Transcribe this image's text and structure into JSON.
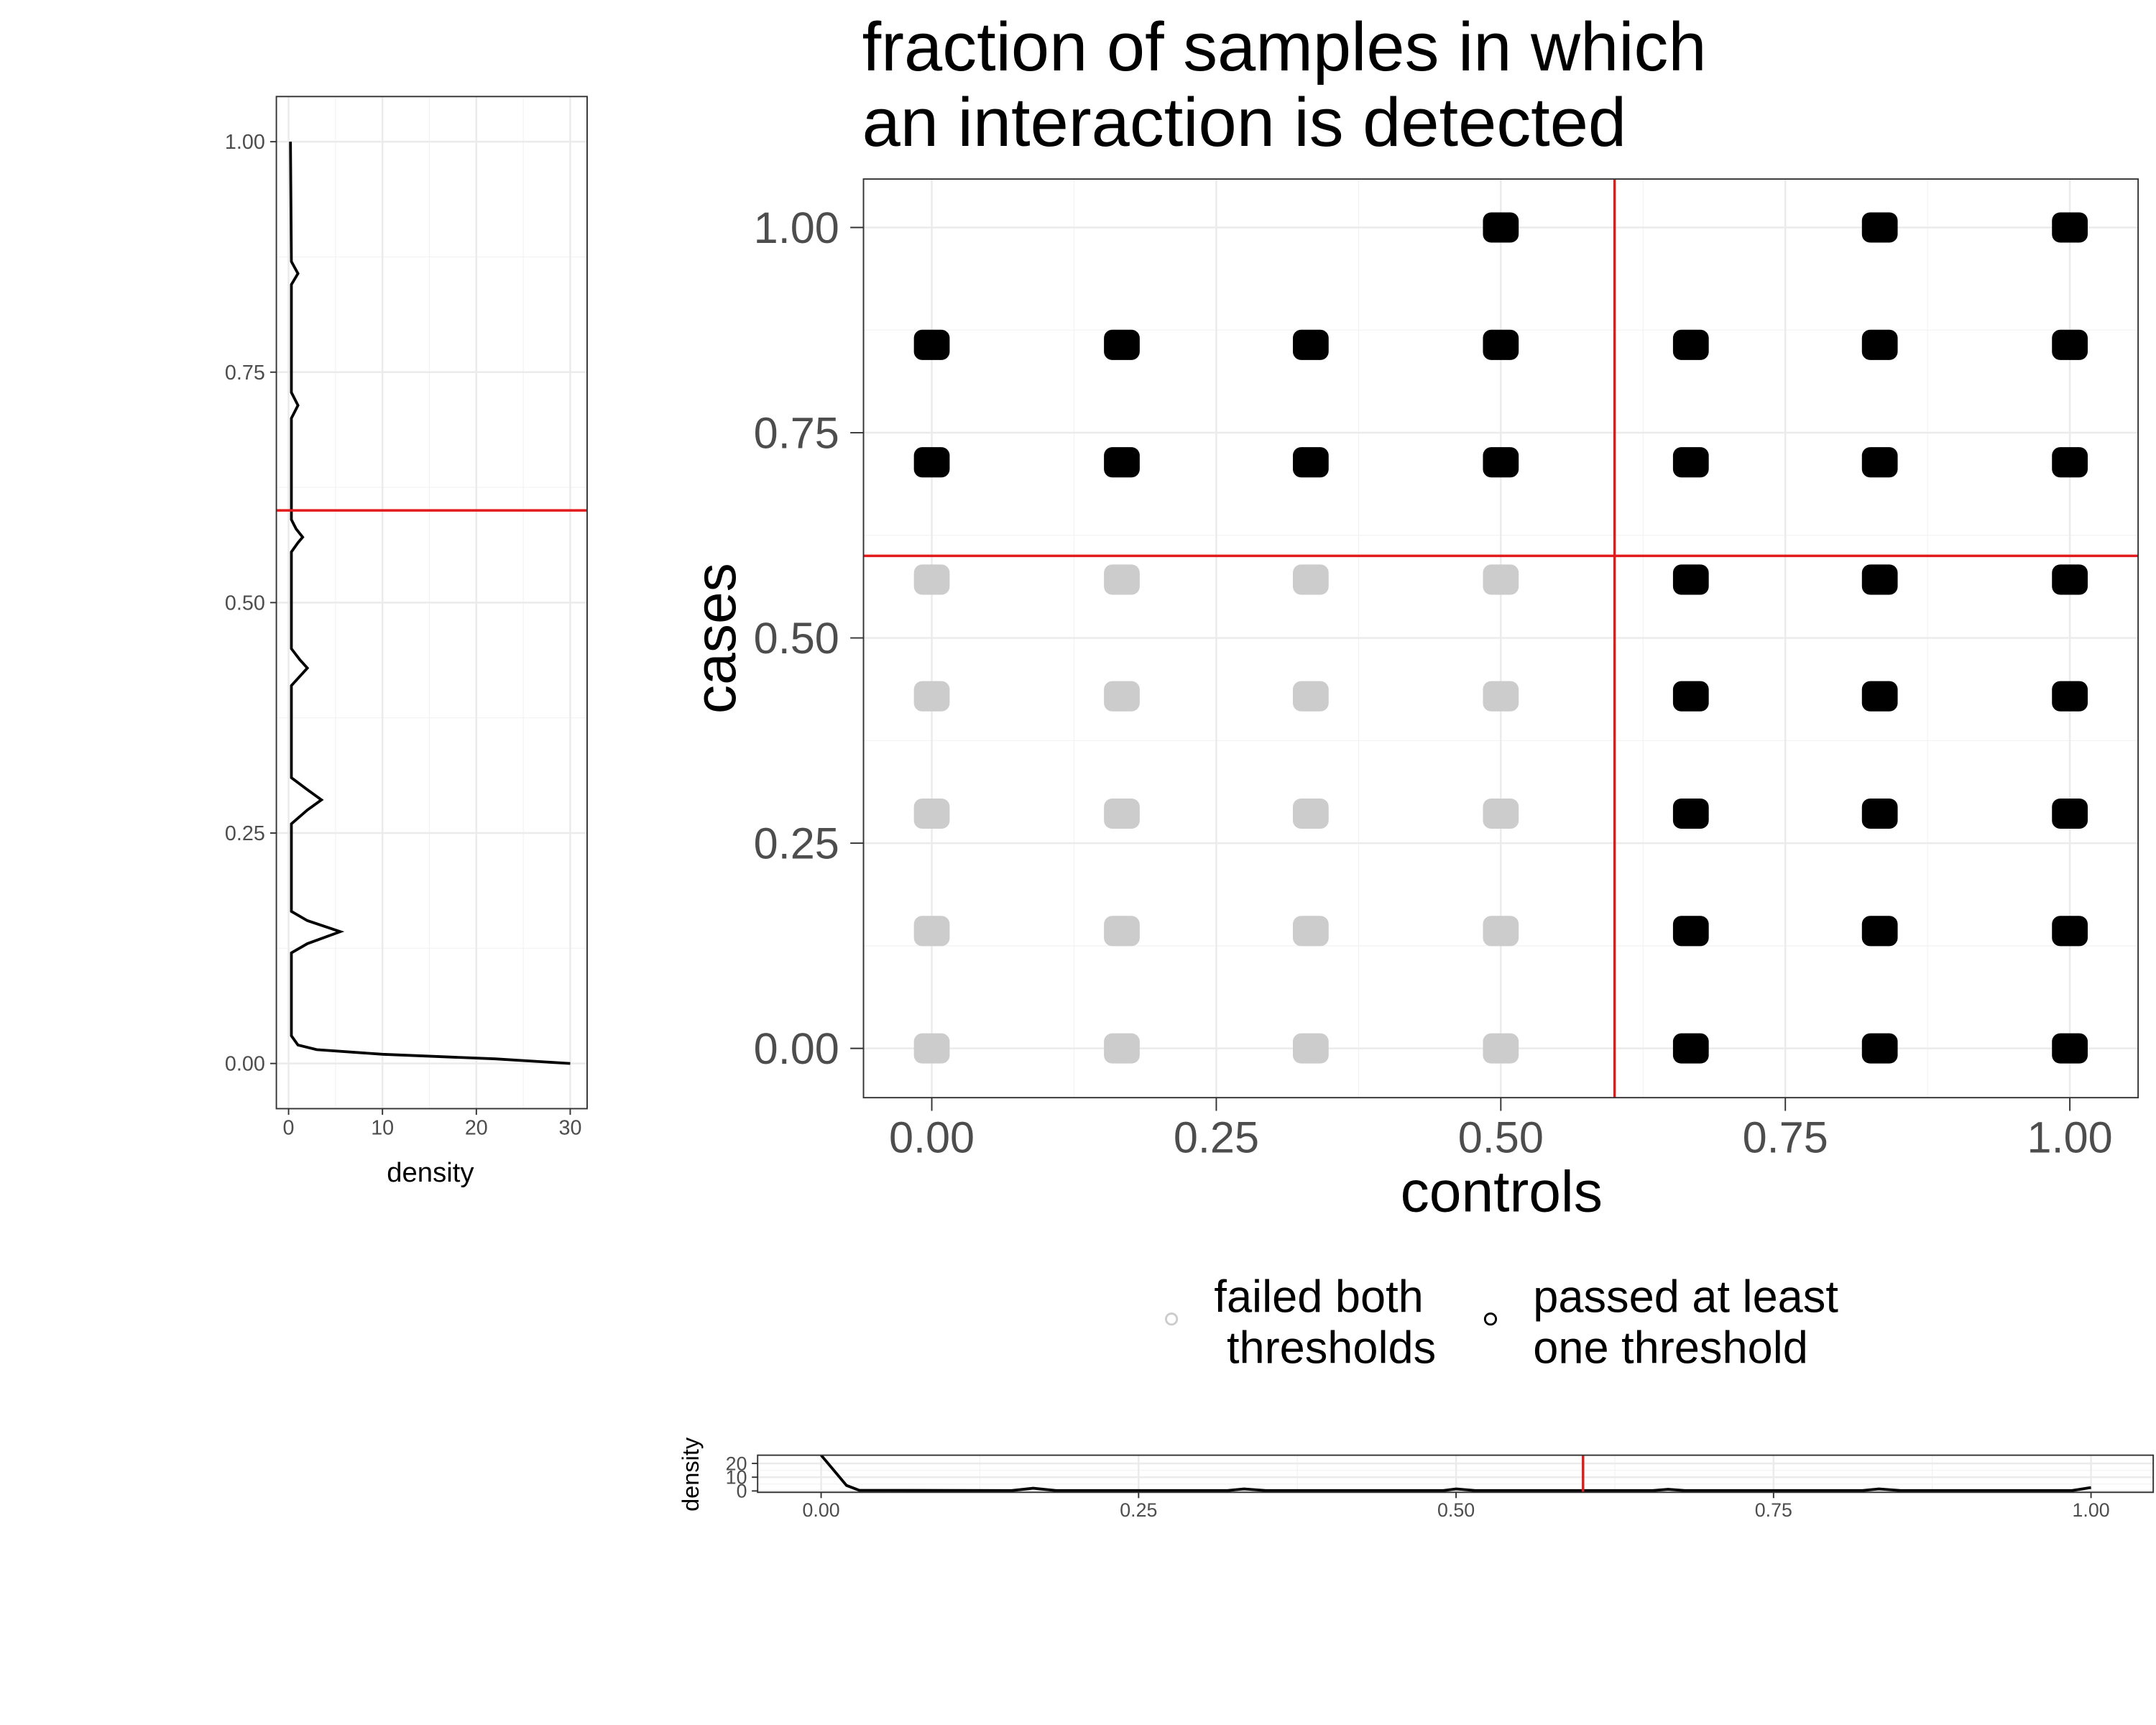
{
  "chart_data": [
    {
      "type": "line",
      "orientation": "horizontal",
      "xlabel": "density",
      "x": [
        0,
        0.005,
        0.01,
        0.015,
        0.02,
        0.03,
        0.12,
        0.13,
        0.143,
        0.155,
        0.165,
        0.26,
        0.275,
        0.286,
        0.297,
        0.31,
        0.41,
        0.42,
        0.429,
        0.438,
        0.45,
        0.555,
        0.565,
        0.571,
        0.58,
        0.59,
        0.7,
        0.714,
        0.728,
        0.845,
        0.857,
        0.87,
        1.0
      ],
      "values": [
        30,
        22,
        10,
        3,
        1,
        0.3,
        0.3,
        2,
        5.5,
        2,
        0.3,
        0.3,
        2,
        3.5,
        2,
        0.3,
        0.3,
        1.2,
        2,
        1.2,
        0.3,
        0.3,
        1,
        1.5,
        0.8,
        0.3,
        0.3,
        1,
        0.3,
        0.3,
        1,
        0.3,
        0.2
      ],
      "color": "#000000",
      "xlim": [
        -1.3,
        31.8
      ],
      "xticks": [
        0,
        10,
        20,
        30
      ],
      "ylim": [
        -0.049,
        1.049
      ],
      "yticks": [
        {
          "value": 0,
          "label": "0.00"
        },
        {
          "value": 0.25,
          "label": "0.25"
        },
        {
          "value": 0.5,
          "label": "0.50"
        },
        {
          "value": 0.75,
          "label": "0.75"
        },
        {
          "value": 1,
          "label": "1.00"
        }
      ],
      "reference_lines": [
        {
          "axis": "y",
          "value": 0.6,
          "color": "#e31a1c"
        }
      ],
      "grid": true
    },
    {
      "type": "scatter",
      "title": "fraction of samples in which\nan interaction is detected",
      "xlabel": "controls",
      "ylabel": "cases",
      "series": [
        {
          "name": "failed both\n thresholds",
          "color": "#cccccc",
          "x": [
            0,
            0,
            0,
            0,
            0,
            0.167,
            0.167,
            0.167,
            0.167,
            0.167,
            0.333,
            0.333,
            0.333,
            0.333,
            0.333,
            0.5,
            0.5,
            0.5,
            0.5,
            0.5
          ],
          "values": [
            0,
            0.143,
            0.286,
            0.429,
            0.571,
            0,
            0.143,
            0.286,
            0.429,
            0.571,
            0,
            0.143,
            0.286,
            0.429,
            0.571,
            0,
            0.143,
            0.286,
            0.429,
            0.571
          ]
        },
        {
          "name": "passed at least\none threshold",
          "color": "#000000",
          "x": [
            0.667,
            0.667,
            0.667,
            0.667,
            0.667,
            0.833,
            0.833,
            0.833,
            0.833,
            0.833,
            1,
            1,
            1,
            1,
            1,
            0,
            0.167,
            0.333,
            0.5,
            0.667,
            0.833,
            1,
            0,
            0.167,
            0.333,
            0.5,
            0.667,
            0.833,
            1,
            0.5,
            0.833,
            1
          ],
          "values": [
            0,
            0.143,
            0.286,
            0.429,
            0.571,
            0,
            0.143,
            0.286,
            0.429,
            0.571,
            0,
            0.143,
            0.286,
            0.429,
            0.571,
            0.714,
            0.714,
            0.714,
            0.714,
            0.714,
            0.714,
            0.714,
            0.857,
            0.857,
            0.857,
            0.857,
            0.857,
            0.857,
            0.857,
            1,
            1,
            1
          ]
        }
      ],
      "xlim": [
        -0.06,
        1.06
      ],
      "ylim": [
        -0.06,
        1.059
      ],
      "xticks": [
        {
          "value": 0,
          "label": "0.00"
        },
        {
          "value": 0.25,
          "label": "0.25"
        },
        {
          "value": 0.5,
          "label": "0.50"
        },
        {
          "value": 0.75,
          "label": "0.75"
        },
        {
          "value": 1,
          "label": "1.00"
        }
      ],
      "yticks": [
        {
          "value": 0,
          "label": "0.00"
        },
        {
          "value": 0.25,
          "label": "0.25"
        },
        {
          "value": 0.5,
          "label": "0.50"
        },
        {
          "value": 0.75,
          "label": "0.75"
        },
        {
          "value": 1,
          "label": "1.00"
        }
      ],
      "reference_lines": [
        {
          "axis": "x",
          "value": 0.6,
          "color": "#e31a1c"
        },
        {
          "axis": "y",
          "value": 0.6,
          "color": "#e31a1c"
        }
      ],
      "grid": true,
      "legend": "bottom"
    },
    {
      "type": "line",
      "orientation": "vertical",
      "ylabel": "density",
      "x": [
        0,
        0.01,
        0.02,
        0.03,
        0.15,
        0.167,
        0.185,
        0.32,
        0.333,
        0.35,
        0.49,
        0.5,
        0.515,
        0.655,
        0.667,
        0.68,
        0.82,
        0.833,
        0.85,
        0.985,
        1.0
      ],
      "values": [
        26,
        15,
        4,
        0.5,
        0.3,
        2,
        0.3,
        0.3,
        1.5,
        0.3,
        0.3,
        1.5,
        0.3,
        0.3,
        1.2,
        0.3,
        0.3,
        1.5,
        0.3,
        0.3,
        2.5
      ],
      "color": "#000000",
      "xlim": [
        -0.05,
        1.049
      ],
      "ylim": [
        -1,
        26
      ],
      "xticks": [
        {
          "value": 0,
          "label": "0.00"
        },
        {
          "value": 0.25,
          "label": "0.25"
        },
        {
          "value": 0.5,
          "label": "0.50"
        },
        {
          "value": 0.75,
          "label": "0.75"
        },
        {
          "value": 1,
          "label": "1.00"
        }
      ],
      "yticks": [
        0,
        10,
        20
      ],
      "reference_lines": [
        {
          "axis": "x",
          "value": 0.6,
          "color": "#e31a1c"
        }
      ],
      "grid": true
    }
  ]
}
